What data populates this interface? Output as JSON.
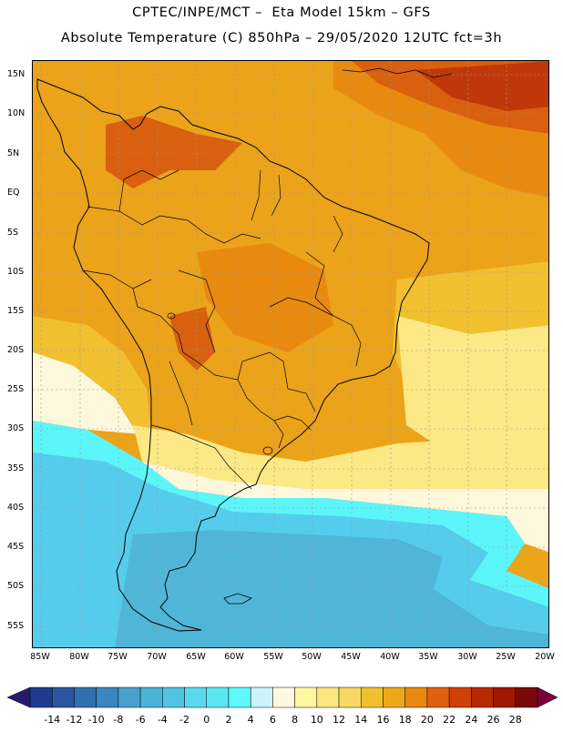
{
  "title_line1": "CPTEC/INPE/MCT –  Eta Model 15km – GFS",
  "title_line2": "Absolute Temperature (C) 850hPa – 29/05/2020 12UTC fct=3h",
  "lat_labels": [
    "15N",
    "10N",
    "5N",
    "EQ",
    "5S",
    "10S",
    "15S",
    "20S",
    "25S",
    "30S",
    "35S",
    "40S",
    "45S",
    "50S",
    "55S"
  ],
  "lon_labels": [
    "85W",
    "80W",
    "75W",
    "70W",
    "65W",
    "60W",
    "55W",
    "50W",
    "45W",
    "40W",
    "35W",
    "30W",
    "25W",
    "20W"
  ],
  "colorbar": {
    "labels": [
      "-14",
      "-12",
      "-10",
      "-8",
      "-6",
      "-4",
      "-2",
      "0",
      "2",
      "4",
      "6",
      "8",
      "10",
      "12",
      "14",
      "16",
      "18",
      "20",
      "22",
      "24",
      "26",
      "28"
    ],
    "colors": [
      "#1e3c8c",
      "#2a56a0",
      "#3070b0",
      "#3a86c0",
      "#48a0cc",
      "#4ab4d8",
      "#50c4e0",
      "#5ad8ec",
      "#5ae6f2",
      "#5cfafa",
      "#ccf2fa",
      "#fff8e0",
      "#fff6a0",
      "#fce680",
      "#f8d860",
      "#f0c030",
      "#eca818",
      "#e88810",
      "#e06010",
      "#d04008",
      "#b82800",
      "#a01800",
      "#7a0a0a"
    ],
    "arrow_left_color": "#2a1a6e",
    "arrow_right_color": "#7a003a"
  },
  "map_colors": {
    "ocean_cold": "#4fb6d8",
    "cold_teal": "#55ccec",
    "cyan": "#5cf6fa",
    "pale": "#fdf7dc",
    "light_yellow": "#fce885",
    "yellow": "#f0c030",
    "orange": "#eba31a",
    "dark_orange": "#e88a10",
    "red_orange": "#d8600e",
    "red": "#c0380a",
    "coast": "#000000",
    "grid": "#999999"
  }
}
